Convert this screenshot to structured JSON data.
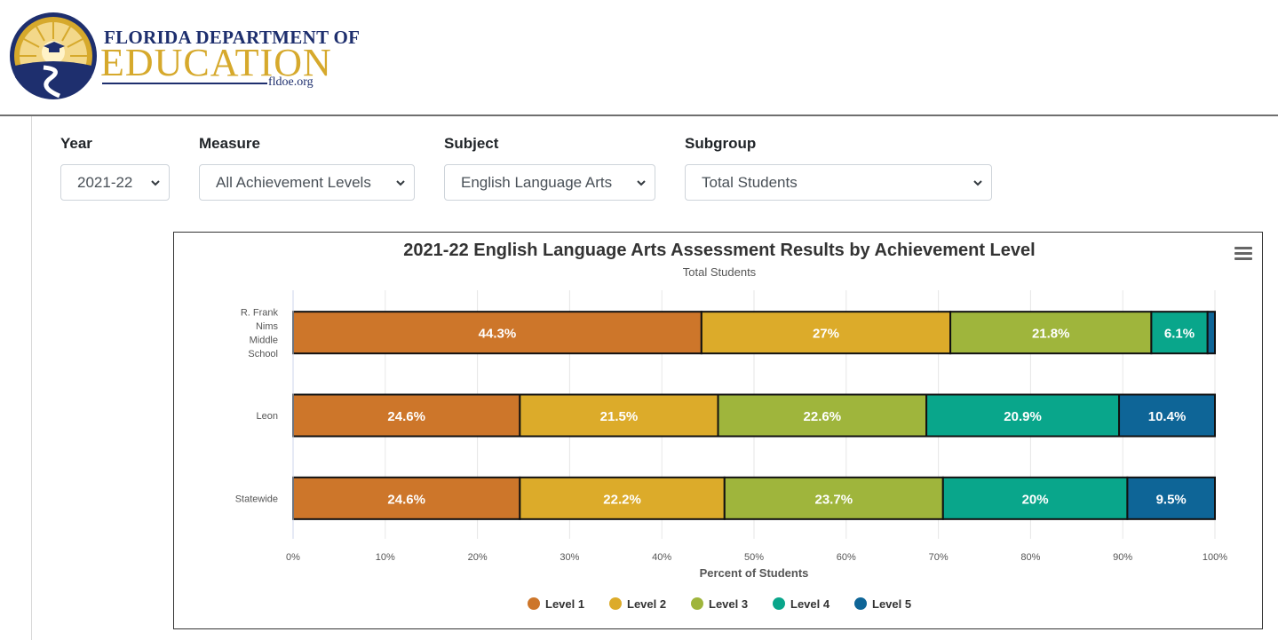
{
  "logo": {
    "top_text": "FLORIDA DEPARTMENT OF",
    "main_text": "EDUCATION",
    "url_text": "fldoe.org",
    "colors": {
      "navy": "#1e2f6e",
      "gold": "#d6a92c"
    }
  },
  "filters": {
    "year": {
      "label": "Year",
      "value": "2021-22"
    },
    "measure": {
      "label": "Measure",
      "value": "All Achievement Levels"
    },
    "subject": {
      "label": "Subject",
      "value": "English Language Arts"
    },
    "subgroup": {
      "label": "Subgroup",
      "value": "Total Students"
    }
  },
  "chart_data": {
    "type": "bar",
    "orientation": "horizontal",
    "stacked": true,
    "title": "2021-22 English Language Arts Assessment Results by Achievement Level",
    "subtitle": "Total Students",
    "xlabel": "Percent of Students",
    "ylabel": "",
    "xlim": [
      0,
      100
    ],
    "x_ticks": [
      "0%",
      "10%",
      "20%",
      "30%",
      "40%",
      "50%",
      "60%",
      "70%",
      "80%",
      "90%",
      "100%"
    ],
    "grid": true,
    "legend_position": "bottom",
    "categories": [
      [
        "R. Frank",
        "Nims",
        "Middle",
        "School"
      ],
      [
        "Leon"
      ],
      [
        "Statewide"
      ]
    ],
    "series": [
      {
        "name": "Level 1",
        "color": "#cd762a",
        "values": [
          44.3,
          24.6,
          24.6
        ],
        "labels": [
          "44.3%",
          "24.6%",
          "24.6%"
        ]
      },
      {
        "name": "Level 2",
        "color": "#dcab2a",
        "values": [
          27,
          21.5,
          22.2
        ],
        "labels": [
          "27%",
          "21.5%",
          "22.2%"
        ]
      },
      {
        "name": "Level 3",
        "color": "#9fb53c",
        "values": [
          21.8,
          22.6,
          23.7
        ],
        "labels": [
          "21.8%",
          "22.6%",
          "23.7%"
        ]
      },
      {
        "name": "Level 4",
        "color": "#09a68b",
        "values": [
          6.1,
          20.9,
          20
        ],
        "labels": [
          "6.1%",
          "20.9%",
          "20%"
        ]
      },
      {
        "name": "Level 5",
        "color": "#0e6597",
        "values": [
          0.8,
          10.4,
          9.5
        ],
        "labels": [
          "",
          "10.4%",
          "9.5%"
        ]
      }
    ]
  }
}
